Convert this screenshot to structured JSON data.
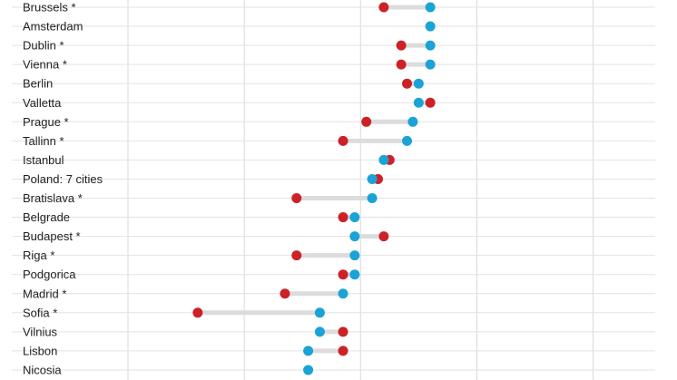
{
  "chart_data": {
    "type": "dumbbell",
    "title": "",
    "xlabel": "",
    "ylabel": "",
    "xlim": [
      -10,
      35
    ],
    "grid": true,
    "legend": "none",
    "series": [
      {
        "key": "red",
        "color": "#cc2127"
      },
      {
        "key": "blue",
        "color": "#1ba3d6"
      }
    ],
    "categories": [
      "Brussels *",
      "Amsterdam",
      "Dublin *",
      "Vienna *",
      "Berlin",
      "Valletta",
      "Prague *",
      "Tallinn *",
      "Istanbul",
      "Poland: 7 cities",
      "Bratislava *",
      "Belgrade",
      "Budapest *",
      "Riga *",
      "Podgorica",
      "Madrid *",
      "Sofia *",
      "Vilnius",
      "Lisbon",
      "Nicosia"
    ],
    "red": [
      22,
      null,
      23.5,
      23.5,
      24,
      26,
      20.5,
      18.5,
      22.5,
      21.5,
      14.5,
      18.5,
      22,
      14.5,
      18.5,
      13.5,
      6,
      18.5,
      18.5,
      null
    ],
    "blue": [
      26,
      26,
      26,
      26,
      25,
      25,
      24.5,
      24,
      22,
      21,
      21,
      19.5,
      19.5,
      19.5,
      19.5,
      18.5,
      16.5,
      16.5,
      15.5,
      15.5
    ]
  }
}
